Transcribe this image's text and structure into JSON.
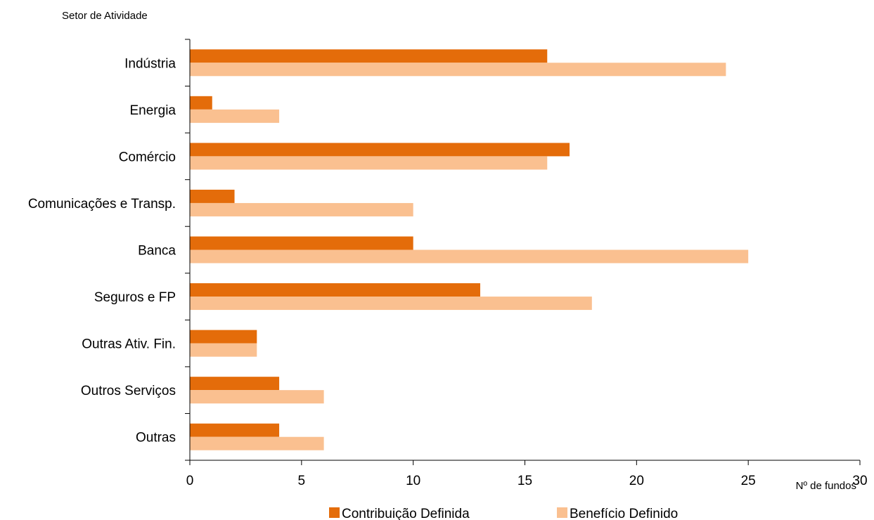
{
  "chart_data": {
    "type": "bar",
    "orientation": "horizontal",
    "ylabel": "Setor de Atividade",
    "xlabel": "Nº de fundos",
    "categories": [
      "Indústria",
      "Energia",
      "Comércio",
      "Comunicações e Transp.",
      "Banca",
      "Seguros e FP",
      "Outras Ativ. Fin.",
      "Outros Serviços",
      "Outras"
    ],
    "series": [
      {
        "name": "Contribuição Definida",
        "color": "#E46C0A",
        "values": [
          16,
          1,
          17,
          2,
          10,
          13,
          3,
          4,
          4
        ]
      },
      {
        "name": "Benefício Definido",
        "color": "#FAC090",
        "values": [
          24,
          4,
          16,
          10,
          25,
          18,
          3,
          6,
          6
        ]
      }
    ],
    "xlim": [
      0,
      30
    ],
    "xticks": [
      0,
      5,
      10,
      15,
      20,
      25,
      30
    ],
    "grid": false,
    "legend_position": "bottom"
  }
}
